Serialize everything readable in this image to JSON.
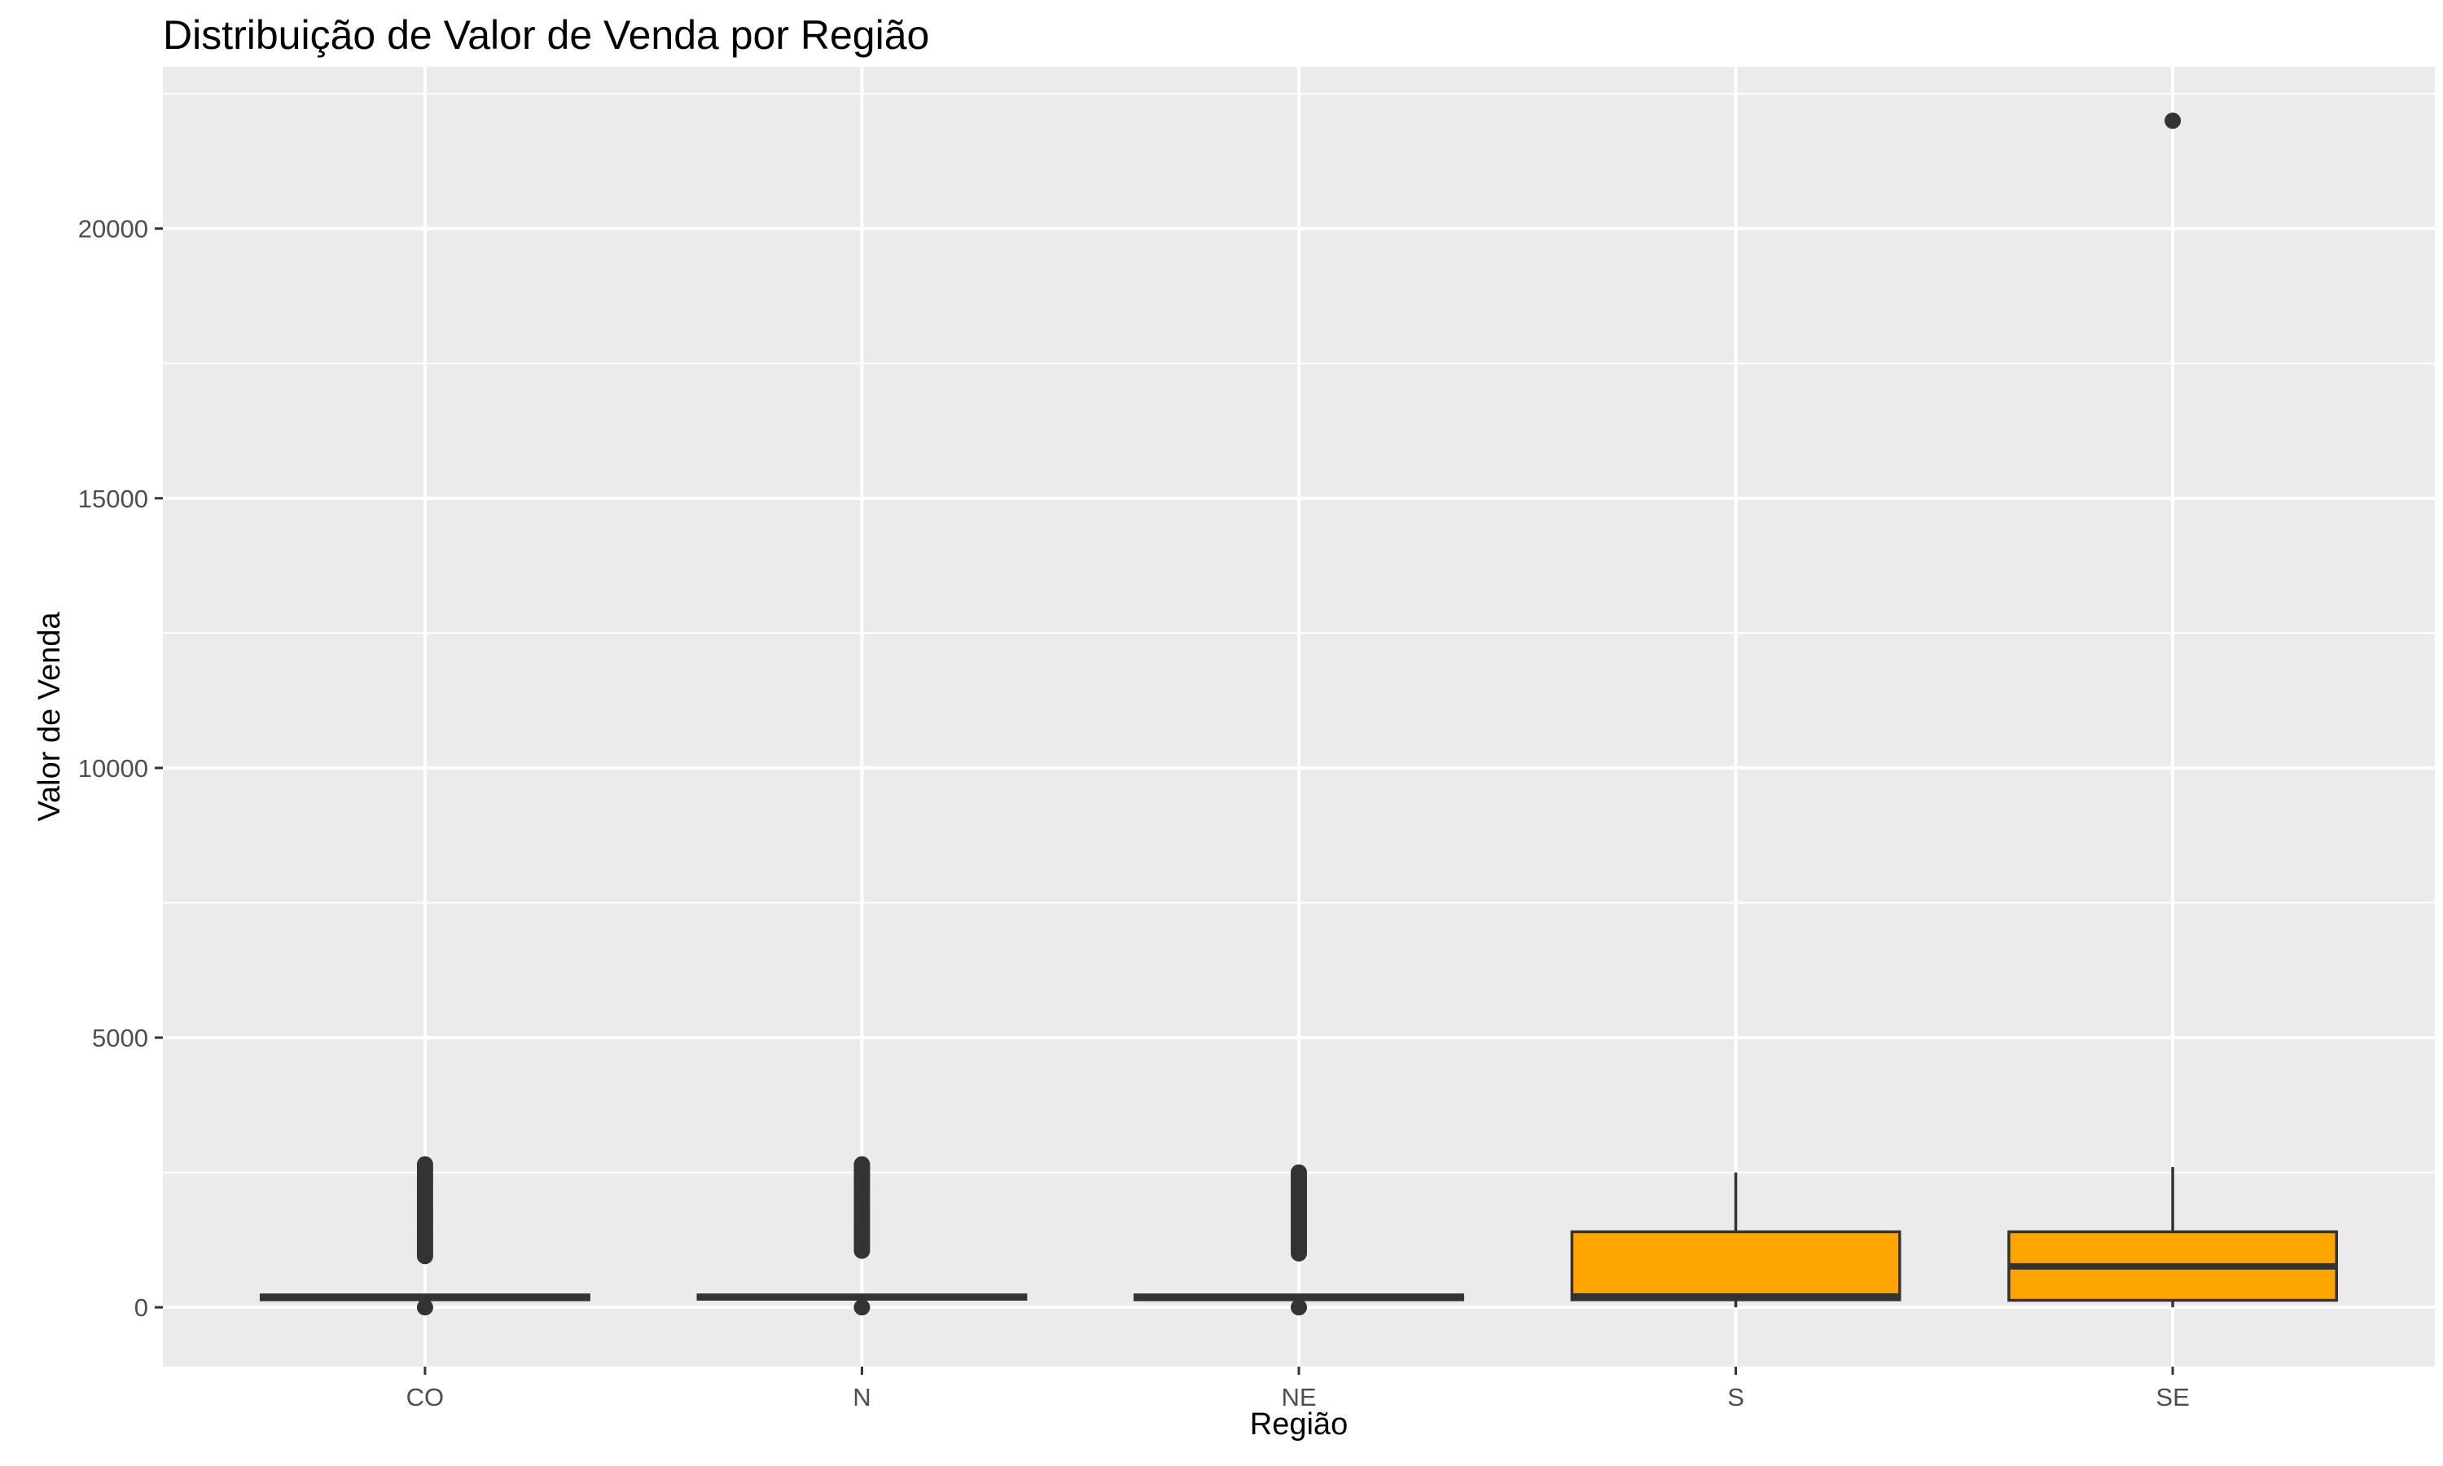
{
  "chart_data": {
    "type": "boxplot",
    "title": "Distribuição de Valor de Venda por Região",
    "xlabel": "Região",
    "ylabel": "Valor de Venda",
    "categories": [
      "CO",
      "N",
      "NE",
      "S",
      "SE"
    ],
    "ylim": [
      -1100,
      23000
    ],
    "yticks": [
      0,
      5000,
      10000,
      15000,
      20000
    ],
    "grid": true,
    "legend": "none",
    "box_fill": "#FFA500",
    "box_stroke": "#333333",
    "panel_bg": "#EBEBEB",
    "grid_color": "#FFFFFF",
    "boxes": [
      {
        "category": "CO",
        "whisker_low": 120,
        "q1": 140,
        "median": 180,
        "q3": 230,
        "whisker_high": 230,
        "outliers": [
          0,
          950,
          1000,
          1050,
          1100,
          1150,
          1200,
          1250,
          1300,
          1350,
          1400,
          1450,
          1500,
          1550,
          1600,
          1650,
          1700,
          1750,
          1800,
          1850,
          1900,
          1950,
          2000,
          2050,
          2100,
          2150,
          2200,
          2250,
          2300,
          2350,
          2400,
          2450,
          2500,
          2550,
          2600,
          2650
        ]
      },
      {
        "category": "N",
        "whisker_low": 130,
        "q1": 150,
        "median": 185,
        "q3": 230,
        "whisker_high": 230,
        "outliers": [
          0,
          1050,
          1100,
          1150,
          1200,
          1250,
          1300,
          1350,
          1400,
          1450,
          1500,
          1550,
          1600,
          1650,
          1700,
          1750,
          1800,
          1850,
          1900,
          1950,
          2000,
          2050,
          2100,
          2150,
          2200,
          2250,
          2300,
          2350,
          2400,
          2450,
          2500,
          2550,
          2600,
          2650
        ]
      },
      {
        "category": "NE",
        "whisker_low": 120,
        "q1": 140,
        "median": 180,
        "q3": 230,
        "whisker_high": 230,
        "outliers": [
          0,
          1000,
          1050,
          1100,
          1150,
          1200,
          1250,
          1300,
          1350,
          1400,
          1450,
          1500,
          1550,
          1600,
          1650,
          1700,
          1750,
          1800,
          1850,
          1900,
          1950,
          2000,
          2050,
          2100,
          2150,
          2200,
          2250,
          2300,
          2350,
          2400,
          2450,
          2500
        ]
      },
      {
        "category": "S",
        "whisker_low": 0,
        "q1": 140,
        "median": 200,
        "q3": 1400,
        "whisker_high": 2500,
        "outliers": []
      },
      {
        "category": "SE",
        "whisker_low": 0,
        "q1": 130,
        "median": 760,
        "q3": 1400,
        "whisker_high": 2600,
        "outliers": [
          22000
        ]
      }
    ]
  }
}
